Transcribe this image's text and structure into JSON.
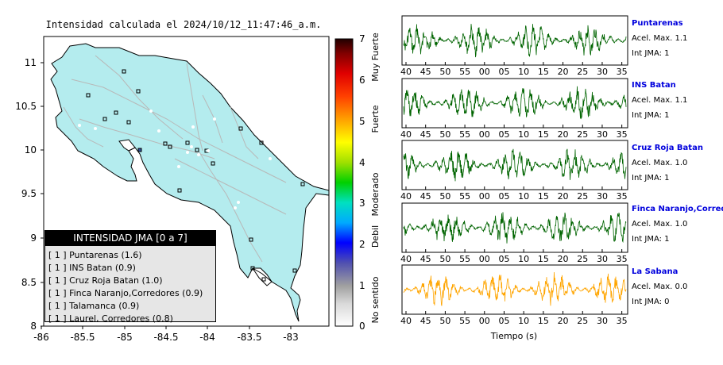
{
  "map": {
    "title": "Intensidad calculada el 2024/10/12_11:47:46_a.m.",
    "x_ticks": [
      "-86",
      "-85.5",
      "-85",
      "-84.5",
      "-84",
      "-83.5",
      "-83"
    ],
    "y_ticks": [
      "11",
      "10.5",
      "10",
      "9.5",
      "9",
      "8.5",
      "8"
    ],
    "land_color": "#b4ecee",
    "station_color": "#c8c8c8"
  },
  "colorbar": {
    "ticks": [
      "0",
      "1",
      "2",
      "3",
      "4",
      "5",
      "6",
      "7"
    ],
    "categories": [
      "No sentido",
      "Debil",
      "Moderado",
      "Fuerte",
      "Muy Fuerte"
    ]
  },
  "legend": {
    "title": "INTENSIDAD JMA [0 a 7]",
    "items": [
      "[ 1 ]  Puntarenas (1.6)",
      "[ 1 ]  INS Batan (0.9)",
      "[ 1 ]  Cruz Roja Batan (1.0)",
      "[ 1 ]  Finca Naranjo,Corredores (0.9)",
      "[ 1 ]  Talamanca (0.9)",
      "[ 1 ]  Laurel, Corredores (0.8)"
    ]
  },
  "stations": [
    {
      "name": "Puntarenas",
      "accel": "Acel. Max. 1.1",
      "jma": "Int JMA: 1",
      "color": "#006400"
    },
    {
      "name": "INS Batan",
      "accel": "Acel. Max. 1.1",
      "jma": "Int JMA: 1",
      "color": "#006400"
    },
    {
      "name": "Cruz Roja Batan",
      "accel": "Acel. Max. 1.0",
      "jma": "Int JMA: 1",
      "color": "#006400"
    },
    {
      "name": "Finca Naranjo,Corredores",
      "accel": "Acel. Max. 1.0",
      "jma": "Int JMA: 1",
      "color": "#006400"
    },
    {
      "name": "La Sabana",
      "accel": "Acel. Max. 0.0",
      "jma": "Int JMA: 0",
      "color": "#ffa500"
    }
  ],
  "time_ticks": [
    "40",
    "45",
    "50",
    "55",
    "00",
    "05",
    "10",
    "15",
    "20",
    "25",
    "30",
    "35"
  ],
  "time_label": "Tiempo (s)"
}
